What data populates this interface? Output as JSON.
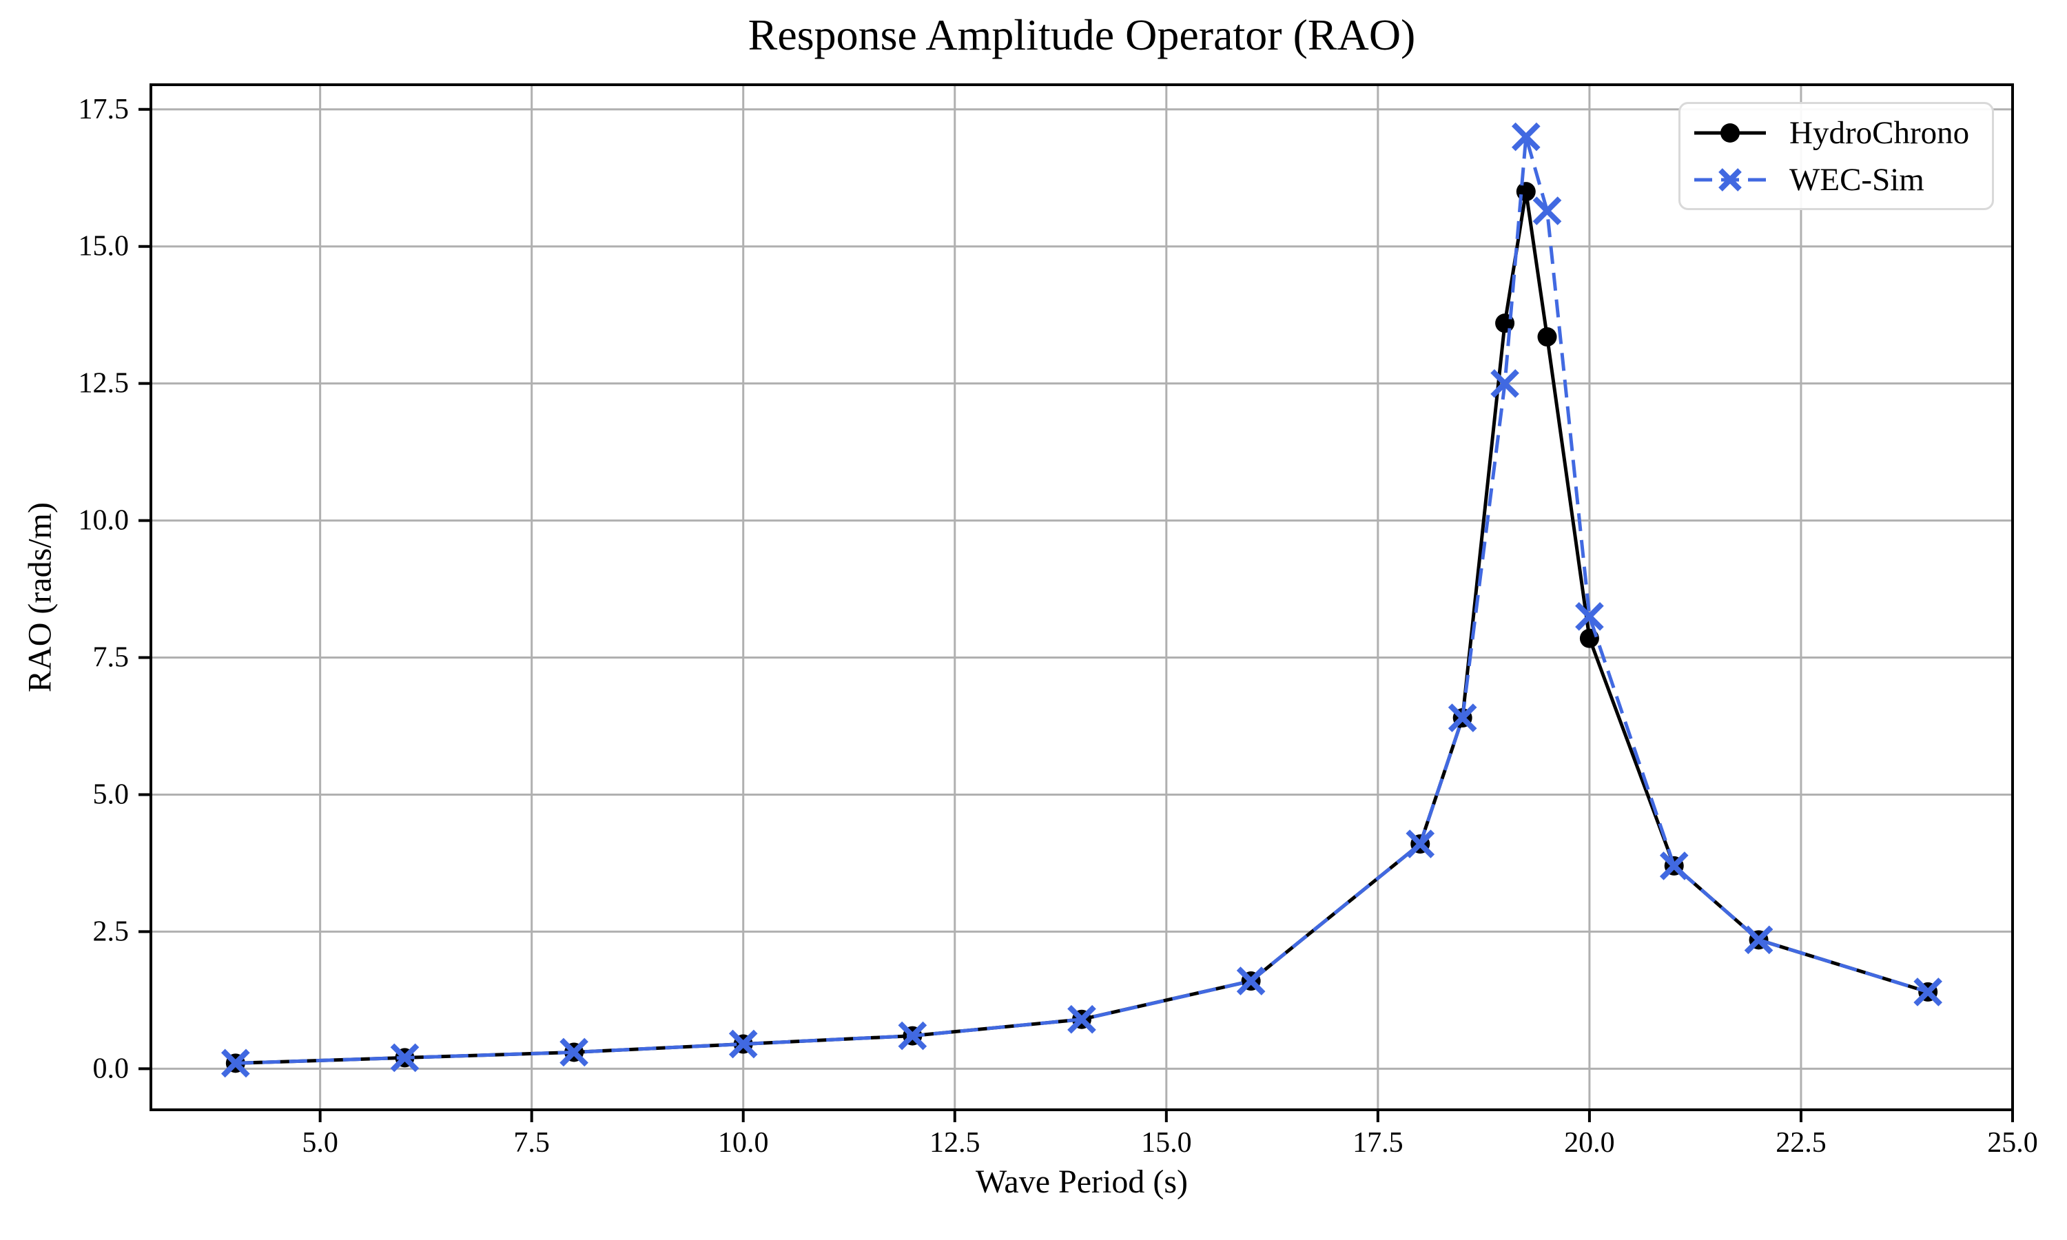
{
  "chart_data": {
    "type": "line",
    "title": "Response Amplitude Operator (RAO)",
    "xlabel": "Wave Period (s)",
    "ylabel": "RAO (rads/m)",
    "xlim": [
      3,
      25
    ],
    "ylim": [
      -0.75,
      17.95
    ],
    "grid": true,
    "legend_position": "upper right",
    "xticks": [
      5,
      7.5,
      10,
      12.5,
      15,
      17.5,
      20,
      22.5,
      25
    ],
    "xtick_labels": [
      "5.0",
      "7.5",
      "10.0",
      "12.5",
      "15.0",
      "17.5",
      "20.0",
      "22.5",
      "25.0"
    ],
    "yticks": [
      0,
      2.5,
      5,
      7.5,
      10,
      12.5,
      15,
      17.5
    ],
    "ytick_labels": [
      "0.0",
      "2.5",
      "5.0",
      "7.5",
      "10.0",
      "12.5",
      "15.0",
      "17.5"
    ],
    "x": [
      4,
      6,
      8,
      10,
      12,
      14,
      16,
      18,
      18.5,
      19,
      19.25,
      19.5,
      20,
      21,
      22,
      24
    ],
    "series": [
      {
        "name": "HydroChrono",
        "color": "#000000",
        "line_style": "solid",
        "marker": "circle",
        "values": [
          0.1,
          0.2,
          0.3,
          0.45,
          0.6,
          0.9,
          1.6,
          4.1,
          6.4,
          13.6,
          16.0,
          13.35,
          7.85,
          3.7,
          2.35,
          1.4
        ]
      },
      {
        "name": "WEC-Sim",
        "color": "#4169e1",
        "line_style": "dashed",
        "marker": "x",
        "values": [
          0.1,
          0.2,
          0.3,
          0.45,
          0.6,
          0.9,
          1.6,
          4.1,
          6.4,
          12.5,
          17.0,
          15.65,
          8.25,
          3.7,
          2.35,
          1.4
        ]
      }
    ]
  },
  "style_colors": {
    "background": "#ffffff",
    "grid": "#b0b0b0",
    "axes": "#000000",
    "tick_label": "#000000",
    "legend_border": "#d9d9d9"
  }
}
